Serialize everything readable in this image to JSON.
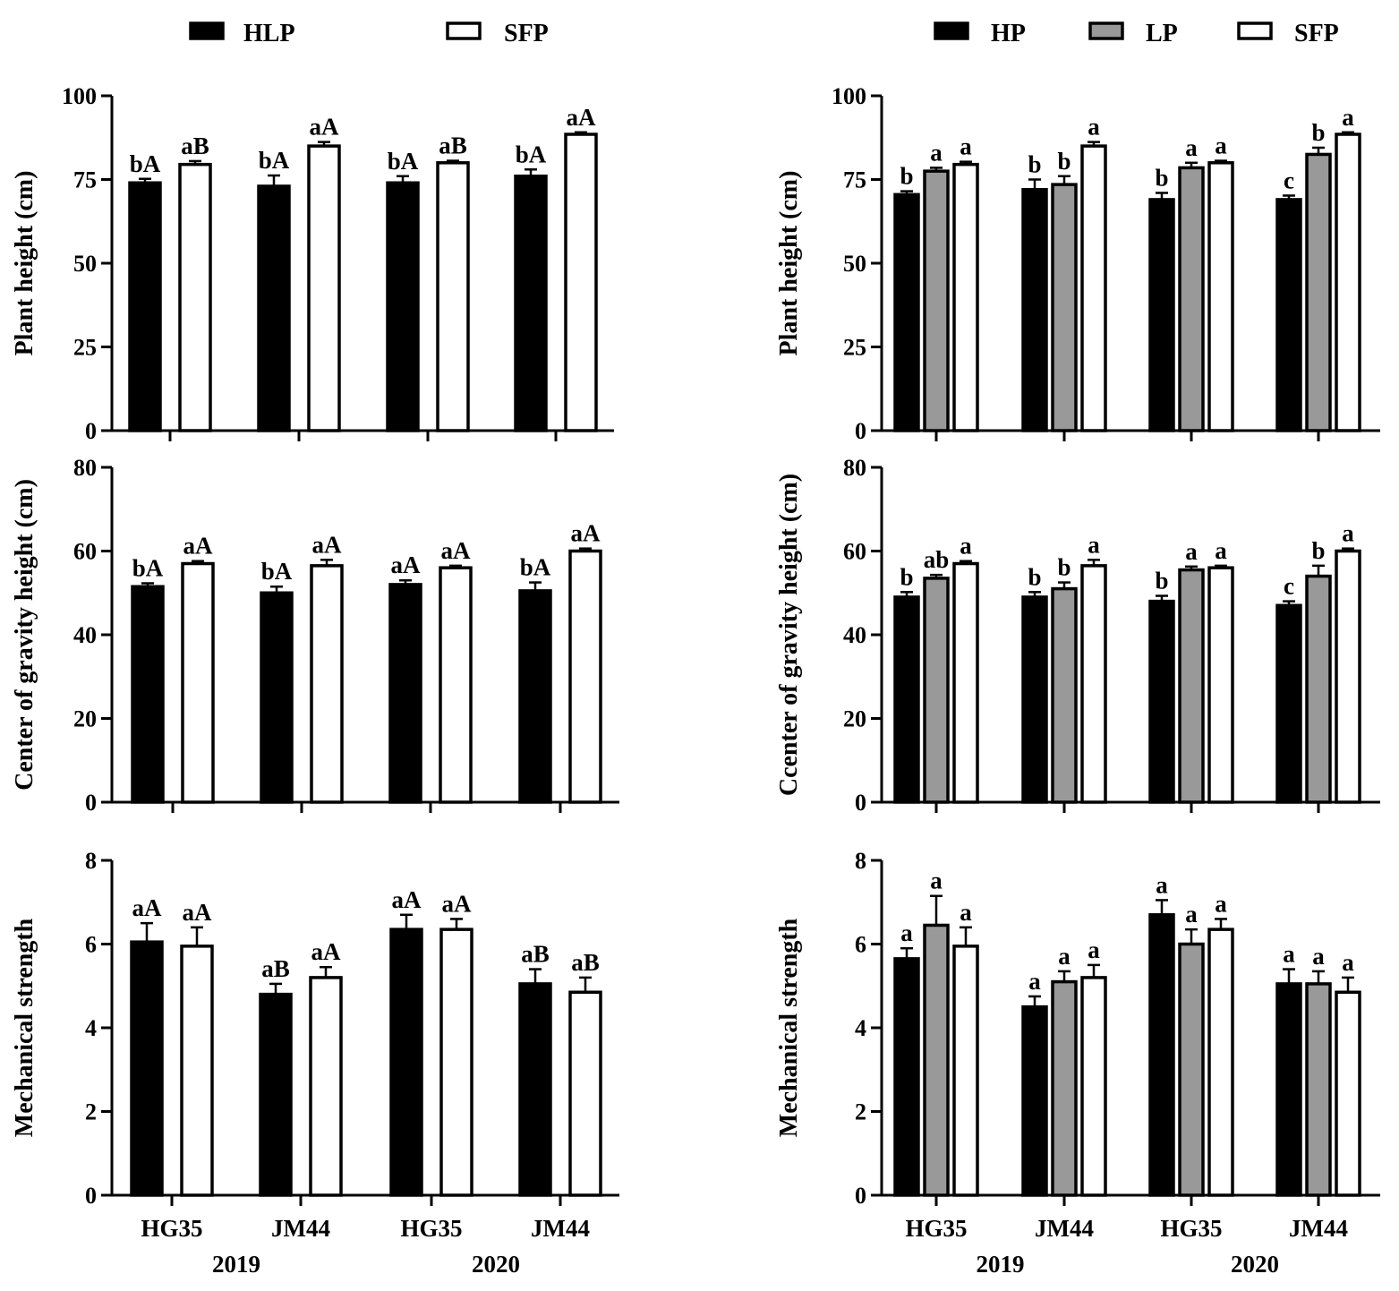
{
  "legends": {
    "left": [
      {
        "label": "HLP",
        "fill": "#000000"
      },
      {
        "label": "SFP",
        "fill": "#ffffff"
      }
    ],
    "right": [
      {
        "label": "HP",
        "fill": "#000000"
      },
      {
        "label": "LP",
        "fill": "#999999"
      },
      {
        "label": "SFP",
        "fill": "#ffffff"
      }
    ]
  },
  "x_groups": [
    "HG35",
    "JM44",
    "HG35",
    "JM44"
  ],
  "years": [
    "2019",
    "2020"
  ],
  "chart_data": [
    {
      "id": "left-plant-height",
      "type": "bar",
      "ylabel": "Plant height (cm)",
      "ylim": [
        0,
        100
      ],
      "yticks": [
        0,
        25,
        50,
        75,
        100
      ],
      "categories": [
        "2019 HG35",
        "2019 JM44",
        "2020 HG35",
        "2020 JM44"
      ],
      "series": [
        {
          "name": "HLP",
          "values": [
            74,
            73,
            74,
            76
          ],
          "errors": [
            1.2,
            3.2,
            2.0,
            2.0
          ],
          "labels": [
            "bA",
            "bA",
            "bA",
            "bA"
          ]
        },
        {
          "name": "SFP",
          "values": [
            79.5,
            85,
            80,
            88.5
          ],
          "errors": [
            1.0,
            1.2,
            0.6,
            0.6
          ],
          "labels": [
            "aB",
            "aA",
            "aB",
            "aA"
          ]
        }
      ]
    },
    {
      "id": "left-cog-height",
      "type": "bar",
      "ylabel": "Center of gravity height (cm)",
      "ylim": [
        0,
        80
      ],
      "yticks": [
        0,
        20,
        40,
        60,
        80
      ],
      "categories": [
        "2019 HG35",
        "2019 JM44",
        "2020 HG35",
        "2020 JM44"
      ],
      "series": [
        {
          "name": "HLP",
          "values": [
            51.5,
            50,
            52,
            50.5
          ],
          "errors": [
            0.8,
            1.5,
            1.0,
            2.0
          ],
          "labels": [
            "bA",
            "bA",
            "aA",
            "bA"
          ]
        },
        {
          "name": "SFP",
          "values": [
            57,
            56.5,
            56,
            60
          ],
          "errors": [
            0.6,
            1.4,
            0.5,
            0.6
          ],
          "labels": [
            "aA",
            "aA",
            "aA",
            "aA"
          ]
        }
      ]
    },
    {
      "id": "left-mech-strength",
      "type": "bar",
      "ylabel": "Mechanical strength",
      "ylim": [
        0,
        8
      ],
      "yticks": [
        0,
        2,
        4,
        6,
        8
      ],
      "categories": [
        "2019 HG35",
        "2019 JM44",
        "2020 HG35",
        "2020 JM44"
      ],
      "series": [
        {
          "name": "HLP",
          "values": [
            6.05,
            4.8,
            6.35,
            5.05
          ],
          "errors": [
            0.45,
            0.25,
            0.35,
            0.35
          ],
          "labels": [
            "aA",
            "aB",
            "aA",
            "aB"
          ]
        },
        {
          "name": "SFP",
          "values": [
            5.95,
            5.2,
            6.35,
            4.85
          ],
          "errors": [
            0.45,
            0.25,
            0.25,
            0.35
          ],
          "labels": [
            "aA",
            "aA",
            "aA",
            "aB"
          ]
        }
      ]
    },
    {
      "id": "right-plant-height",
      "type": "bar",
      "ylabel": "Plant height (cm)",
      "ylim": [
        0,
        100
      ],
      "yticks": [
        0,
        25,
        50,
        75,
        100
      ],
      "categories": [
        "2019 HG35",
        "2019 JM44",
        "2020 HG35",
        "2020 JM44"
      ],
      "series": [
        {
          "name": "HP",
          "values": [
            70.5,
            72,
            69,
            69
          ],
          "errors": [
            1.0,
            3.0,
            2.0,
            1.2
          ],
          "labels": [
            "b",
            "b",
            "b",
            "c"
          ]
        },
        {
          "name": "LP",
          "values": [
            77.5,
            73.5,
            78.5,
            82.5
          ],
          "errors": [
            1.0,
            2.5,
            1.5,
            2.0
          ],
          "labels": [
            "a",
            "b",
            "a",
            "b"
          ]
        },
        {
          "name": "SFP",
          "values": [
            79.5,
            85,
            80,
            88.5
          ],
          "errors": [
            0.8,
            1.2,
            0.6,
            0.6
          ],
          "labels": [
            "a",
            "a",
            "a",
            "a"
          ]
        }
      ]
    },
    {
      "id": "right-cog-height",
      "type": "bar",
      "ylabel": "Ccenter of gravity height (cm)",
      "ylim": [
        0,
        80
      ],
      "yticks": [
        0,
        20,
        40,
        60,
        80
      ],
      "categories": [
        "2019 HG35",
        "2019 JM44",
        "2020 HG35",
        "2020 JM44"
      ],
      "series": [
        {
          "name": "HP",
          "values": [
            49,
            49,
            48,
            47
          ],
          "errors": [
            1.2,
            1.2,
            1.3,
            1.0
          ],
          "labels": [
            "b",
            "b",
            "b",
            "c"
          ]
        },
        {
          "name": "LP",
          "values": [
            53.5,
            51,
            55.5,
            54
          ],
          "errors": [
            0.8,
            1.5,
            0.8,
            2.5
          ],
          "labels": [
            "ab",
            "b",
            "a",
            "b"
          ]
        },
        {
          "name": "SFP",
          "values": [
            57,
            56.5,
            56,
            60
          ],
          "errors": [
            0.6,
            1.4,
            0.5,
            0.6
          ],
          "labels": [
            "a",
            "a",
            "a",
            "a"
          ]
        }
      ]
    },
    {
      "id": "right-mech-strength",
      "type": "bar",
      "ylabel": "Mechanical strength",
      "ylim": [
        0,
        8
      ],
      "yticks": [
        0,
        2,
        4,
        6,
        8
      ],
      "categories": [
        "2019 HG35",
        "2019 JM44",
        "2020 HG35",
        "2020 JM44"
      ],
      "series": [
        {
          "name": "HP",
          "values": [
            5.65,
            4.5,
            6.7,
            5.05
          ],
          "errors": [
            0.25,
            0.25,
            0.35,
            0.35
          ],
          "labels": [
            "a",
            "a",
            "a",
            "a"
          ]
        },
        {
          "name": "LP",
          "values": [
            6.45,
            5.1,
            6.0,
            5.05
          ],
          "errors": [
            0.7,
            0.25,
            0.35,
            0.3
          ],
          "labels": [
            "a",
            "a",
            "a",
            "a"
          ]
        },
        {
          "name": "SFP",
          "values": [
            5.95,
            5.2,
            6.35,
            4.85
          ],
          "errors": [
            0.45,
            0.3,
            0.25,
            0.35
          ],
          "labels": [
            "a",
            "a",
            "a",
            "a"
          ]
        }
      ]
    }
  ]
}
